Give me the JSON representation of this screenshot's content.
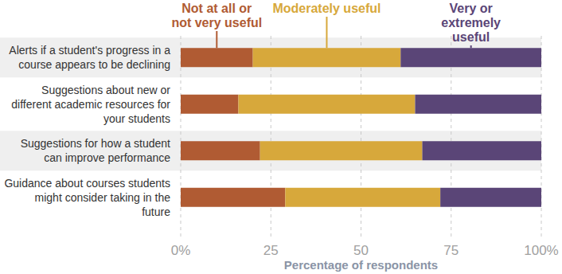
{
  "chart_data": {
    "type": "bar",
    "orientation": "horizontal",
    "stacked": true,
    "grid": true,
    "categories": [
      "Alerts if a student's progress in a course appears to be declining",
      "Suggestions about new or different academic resources for your students",
      "Suggestions for how a student can improve performance",
      "Guidance about courses students might consider taking in the future"
    ],
    "series": [
      {
        "name": "Not at all or not very useful",
        "color": "#b05b33",
        "values": [
          20,
          16,
          22,
          29
        ]
      },
      {
        "name": "Moderately useful",
        "color": "#d7a83b",
        "values": [
          41,
          49,
          45,
          43
        ]
      },
      {
        "name": "Very or extremely useful",
        "color": "#5a4577",
        "values": [
          39,
          35,
          33,
          28
        ]
      }
    ],
    "xlim": [
      0,
      100
    ],
    "xticks": [
      {
        "value": 0,
        "label": "0%"
      },
      25,
      50,
      75,
      {
        "value": 100,
        "label": "100%"
      }
    ],
    "x_label": "Percentage of respondents"
  }
}
